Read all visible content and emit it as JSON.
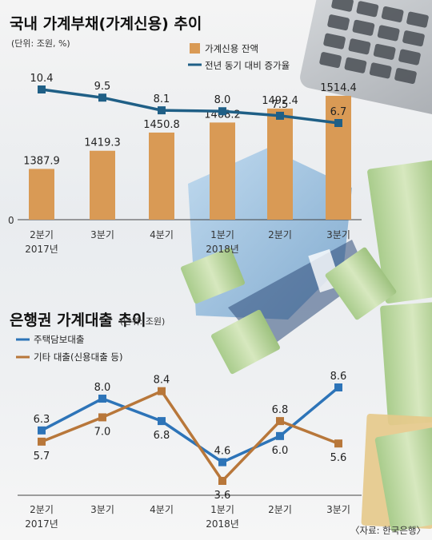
{
  "source": "〈자료: 한국은행〉",
  "colors": {
    "bar": "#d99a55",
    "line_credit": "#1f5f86",
    "mortgage": "#2d74b8",
    "other": "#b8773a"
  },
  "chart_data": [
    {
      "type": "bar",
      "title": "국내 가계부채(가계신용) 추이",
      "unit": "(단위: 조원, %)",
      "zero_label": "0",
      "categories": [
        "2분기|2017년",
        "3분기|",
        "4분기|",
        "1분기|2018년",
        "2분기|",
        "3분기|"
      ],
      "series": [
        {
          "name": "가계신용 잔액",
          "type": "bar",
          "values": [
            1387.9,
            1419.3,
            1450.8,
            1468.2,
            1492.4,
            1514.4
          ],
          "labels": [
            "1387.9",
            "1419.3",
            "1450.8",
            "1468.2",
            "1492.4",
            "1514.4"
          ]
        },
        {
          "name": "전년 동기 대비 증가율",
          "type": "line",
          "values": [
            10.4,
            9.5,
            8.1,
            8.0,
            7.5,
            6.7
          ],
          "labels": [
            "10.4",
            "9.5",
            "8.1",
            "8.0",
            "7.5",
            "6.7"
          ]
        }
      ],
      "legend_position": "top-right",
      "grid": false
    },
    {
      "type": "line",
      "title": "은행권 가계대출 추이",
      "unit": "(단위: 조원)",
      "categories": [
        "2분기|2017년",
        "3분기|",
        "4분기|",
        "1분기|2018년",
        "2분기|",
        "3분기|"
      ],
      "series": [
        {
          "name": "주택담보대출",
          "values": [
            6.3,
            8.0,
            6.8,
            4.6,
            6.0,
            8.6
          ],
          "labels": [
            "6.3",
            "8.0",
            "6.8",
            "4.6",
            "6.0",
            "8.6"
          ]
        },
        {
          "name": "기타 대출(신용대출 등)",
          "values": [
            5.7,
            7.0,
            8.4,
            3.6,
            6.8,
            5.6
          ],
          "labels": [
            "5.7",
            "7.0",
            "8.4",
            "3.6",
            "6.8",
            "5.6"
          ]
        }
      ],
      "legend_position": "top-left",
      "grid": false
    }
  ]
}
